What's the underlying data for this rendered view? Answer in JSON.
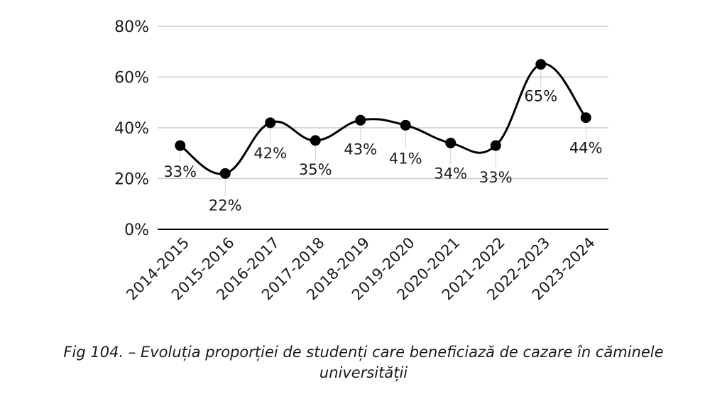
{
  "chart_data": {
    "type": "line",
    "title": "",
    "xlabel": "",
    "ylabel": "",
    "categories": [
      "2014-2015",
      "2015-2016",
      "2016-2017",
      "2017-2018",
      "2018-2019",
      "2019-2020",
      "2020-2021",
      "2021-2022",
      "2022-2023",
      "2023-2024"
    ],
    "values": [
      33,
      22,
      42,
      35,
      43,
      41,
      34,
      33,
      65,
      44
    ],
    "value_labels": [
      "33%",
      "22%",
      "42%",
      "35%",
      "43%",
      "41%",
      "34%",
      "33%",
      "65%",
      "44%"
    ],
    "ylim": [
      0,
      80
    ],
    "yticks": [
      0,
      20,
      40,
      60,
      80
    ],
    "ytick_labels": [
      "0%",
      "20%",
      "40%",
      "60%",
      "80%"
    ],
    "grid": true,
    "smooth": true,
    "line_color": "#000000",
    "grid_color": "#cccccc"
  },
  "caption": {
    "line1": "Fig 104. – Evoluția proporției de studenți care beneficiază de cazare în căminele",
    "line2": "universității"
  }
}
